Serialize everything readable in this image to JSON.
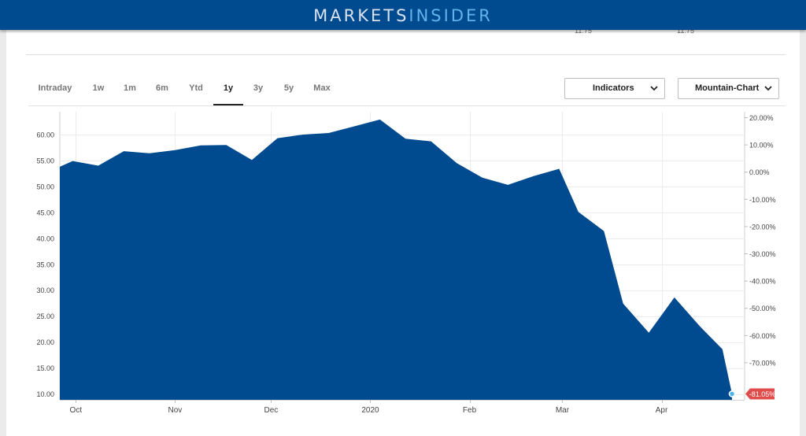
{
  "header": {
    "logo_part1": "MARKETS",
    "logo_part2": "INSIDER",
    "brand_color": "#004a8f",
    "accent_color": "#5fb4ea"
  },
  "clipped_values": [
    "11.75",
    "11.75"
  ],
  "tabs": [
    {
      "label": "Intraday"
    },
    {
      "label": "1w"
    },
    {
      "label": "1m"
    },
    {
      "label": "6m"
    },
    {
      "label": "Ytd"
    },
    {
      "label": "1y",
      "active": true
    },
    {
      "label": "3y"
    },
    {
      "label": "5y"
    },
    {
      "label": "Max"
    }
  ],
  "controls": {
    "indicators_label": "Indicators",
    "chart_type_label": "Mountain-Chart",
    "chevron_icon": "chevron-down-icon"
  },
  "chart_data": {
    "type": "area",
    "fill_color": "#004a8f",
    "x_tick_labels": [
      "Oct",
      "Nov",
      "Dec",
      "2020",
      "Feb",
      "Mar",
      "Apr"
    ],
    "y_left_ticks": [
      "10.00",
      "15.00",
      "20.00",
      "25.00",
      "30.00",
      "35.00",
      "40.00",
      "45.00",
      "50.00",
      "55.00",
      "60.00"
    ],
    "y_right_ticks": [
      "20.00%",
      "10.00%",
      "0.00%",
      "-10.00%",
      "-20.00%",
      "-30.00%",
      "-40.00%",
      "-50.00%",
      "-60.00%",
      "-70.00%"
    ],
    "ylim": [
      9,
      63.5
    ],
    "series": [
      {
        "x": [
          "2019-09-26",
          "2019-09-30",
          "2019-10-08",
          "2019-10-16",
          "2019-10-24",
          "2019-11-01",
          "2019-11-09",
          "2019-11-17",
          "2019-11-25",
          "2019-12-03",
          "2019-12-11",
          "2019-12-19",
          "2019-12-27",
          "2020-01-04",
          "2020-01-12",
          "2020-01-20",
          "2020-01-28",
          "2020-02-05",
          "2020-02-13",
          "2020-02-21",
          "2020-02-29",
          "2020-03-06",
          "2020-03-14",
          "2020-03-20",
          "2020-03-28",
          "2020-04-05",
          "2020-04-13",
          "2020-04-20",
          "2020-04-23"
        ],
        "values": [
          53.8,
          54.9,
          54.0,
          56.8,
          56.4,
          57.0,
          57.9,
          58.0,
          55.1,
          59.3,
          60.0,
          60.3,
          61.6,
          62.9,
          59.2,
          58.7,
          54.5,
          51.7,
          50.3,
          52.0,
          53.4,
          45.1,
          41.4,
          27.4,
          21.8,
          28.6,
          23.0,
          18.6,
          10.0
        ]
      }
    ],
    "last_value_label": "-81.05%",
    "last_value_color": "#e04b4b"
  }
}
